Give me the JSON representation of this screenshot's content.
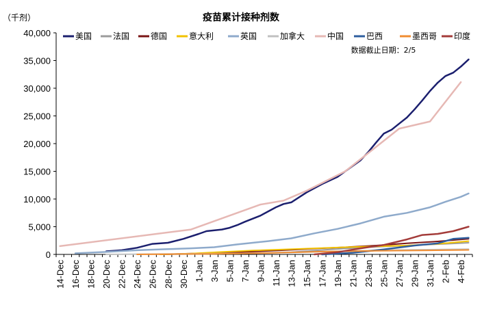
{
  "chart_data": {
    "type": "line",
    "title": "疫苗累计接种剂数",
    "unit_label": "（千剂）",
    "annotation": "数据截止日期：2/5",
    "ylim": [
      0,
      40000
    ],
    "yticks": [
      "0",
      "5,000",
      "10,000",
      "15,000",
      "20,000",
      "25,000",
      "30,000",
      "35,000",
      "40,000"
    ],
    "ytick_values": [
      0,
      5000,
      10000,
      15000,
      20000,
      25000,
      30000,
      35000,
      40000
    ],
    "x_dates": [
      "12-14",
      "12-15",
      "12-16",
      "12-17",
      "12-18",
      "12-19",
      "12-20",
      "12-21",
      "12-22",
      "12-23",
      "12-24",
      "12-25",
      "12-26",
      "12-27",
      "12-28",
      "12-29",
      "12-30",
      "12-31",
      "01-01",
      "01-02",
      "01-03",
      "01-04",
      "01-05",
      "01-06",
      "01-07",
      "01-08",
      "01-09",
      "01-10",
      "01-11",
      "01-12",
      "01-13",
      "01-14",
      "01-15",
      "01-16",
      "01-17",
      "01-18",
      "01-19",
      "01-20",
      "01-21",
      "01-22",
      "01-23",
      "01-24",
      "01-25",
      "01-26",
      "01-27",
      "01-28",
      "01-29",
      "01-30",
      "01-31",
      "02-01",
      "02-02",
      "02-03",
      "02-04",
      "02-05"
    ],
    "xtick_labels": [
      "14-Dec",
      "16-Dec",
      "18-Dec",
      "20-Dec",
      "22-Dec",
      "24-Dec",
      "26-Dec",
      "28-Dec",
      "30-Dec",
      "1-Jan",
      "3-Jan",
      "5-Jan",
      "7-Jan",
      "9-Jan",
      "11-Jan",
      "13-Jan",
      "15-Jan",
      "17-Jan",
      "19-Jan",
      "21-Jan",
      "23-Jan",
      "25-Jan",
      "27-Jan",
      "29-Jan",
      "31-Jan",
      "2-Feb",
      "4-Feb"
    ],
    "grid": false,
    "legend_position": "top",
    "series": [
      {
        "name": "美国",
        "color": "#1b1f6e",
        "width": 2.5,
        "points": [
          [
            "12-20",
            550
          ],
          [
            "12-22",
            750
          ],
          [
            "12-24",
            1200
          ],
          [
            "12-26",
            1900
          ],
          [
            "12-28",
            2100
          ],
          [
            "12-30",
            2800
          ],
          [
            "01-01",
            3700
          ],
          [
            "01-02",
            4200
          ],
          [
            "01-04",
            4500
          ],
          [
            "01-05",
            4800
          ],
          [
            "01-06",
            5300
          ],
          [
            "01-07",
            5900
          ],
          [
            "01-09",
            7000
          ],
          [
            "01-11",
            8500
          ],
          [
            "01-12",
            9100
          ],
          [
            "01-13",
            9400
          ],
          [
            "01-14",
            10300
          ],
          [
            "01-15",
            11200
          ],
          [
            "01-17",
            12700
          ],
          [
            "01-19",
            14000
          ],
          [
            "01-21",
            16000
          ],
          [
            "01-22",
            17000
          ],
          [
            "01-23",
            18500
          ],
          [
            "01-24",
            20200
          ],
          [
            "01-25",
            21800
          ],
          [
            "01-26",
            22500
          ],
          [
            "01-27",
            23600
          ],
          [
            "01-28",
            24700
          ],
          [
            "01-29",
            26200
          ],
          [
            "01-30",
            27800
          ],
          [
            "01-31",
            29500
          ],
          [
            "02-01",
            31000
          ],
          [
            "02-02",
            32200
          ],
          [
            "02-03",
            32800
          ],
          [
            "02-04",
            33900
          ],
          [
            "02-05",
            35200
          ]
        ]
      },
      {
        "name": "法国",
        "color": "#9b9b9b",
        "width": 2,
        "points": [
          [
            "12-27",
            0
          ],
          [
            "01-03",
            100
          ],
          [
            "01-08",
            200
          ],
          [
            "01-13",
            400
          ],
          [
            "01-18",
            900
          ],
          [
            "01-23",
            1300
          ],
          [
            "01-28",
            1600
          ],
          [
            "02-02",
            1900
          ],
          [
            "02-05",
            2100
          ]
        ]
      },
      {
        "name": "德国",
        "color": "#7a1414",
        "width": 2,
        "points": [
          [
            "12-27",
            0
          ],
          [
            "12-31",
            150
          ],
          [
            "01-04",
            300
          ],
          [
            "01-08",
            500
          ],
          [
            "01-12",
            750
          ],
          [
            "01-16",
            1050
          ],
          [
            "01-20",
            1300
          ],
          [
            "01-24",
            1600
          ],
          [
            "01-28",
            2000
          ],
          [
            "02-01",
            2350
          ],
          [
            "02-05",
            2800
          ]
        ]
      },
      {
        "name": "意大利",
        "color": "#f2c200",
        "width": 2,
        "points": [
          [
            "12-27",
            0
          ],
          [
            "12-31",
            150
          ],
          [
            "01-04",
            450
          ],
          [
            "01-08",
            700
          ],
          [
            "01-12",
            900
          ],
          [
            "01-16",
            1100
          ],
          [
            "01-20",
            1300
          ],
          [
            "01-24",
            1450
          ],
          [
            "01-28",
            1600
          ],
          [
            "02-01",
            1900
          ],
          [
            "02-05",
            2400
          ]
        ]
      },
      {
        "name": "英国",
        "color": "#8eaacb",
        "width": 2.5,
        "points": [
          [
            "12-16",
            200
          ],
          [
            "12-20",
            450
          ],
          [
            "12-24",
            750
          ],
          [
            "12-28",
            950
          ],
          [
            "12-31",
            1100
          ],
          [
            "01-03",
            1300
          ],
          [
            "01-06",
            1800
          ],
          [
            "01-10",
            2400
          ],
          [
            "01-13",
            2900
          ],
          [
            "01-16",
            3800
          ],
          [
            "01-19",
            4600
          ],
          [
            "01-22",
            5600
          ],
          [
            "01-25",
            6800
          ],
          [
            "01-28",
            7500
          ],
          [
            "01-31",
            8500
          ],
          [
            "02-02",
            9500
          ],
          [
            "02-04",
            10400
          ],
          [
            "02-05",
            11000
          ]
        ]
      },
      {
        "name": "加拿大",
        "color": "#c0c0c0",
        "width": 2,
        "points": [
          [
            "12-20",
            0
          ],
          [
            "12-30",
            100
          ],
          [
            "01-06",
            200
          ],
          [
            "01-13",
            350
          ],
          [
            "01-20",
            600
          ],
          [
            "01-27",
            800
          ],
          [
            "02-05",
            950
          ]
        ]
      },
      {
        "name": "中国",
        "color": "#e6b8b4",
        "width": 2.5,
        "points": [
          [
            "12-14",
            1500
          ],
          [
            "12-31",
            4500
          ],
          [
            "01-09",
            9000
          ],
          [
            "01-12",
            9700
          ],
          [
            "01-15",
            11500
          ],
          [
            "01-20",
            15000
          ],
          [
            "01-27",
            22700
          ],
          [
            "01-31",
            24000
          ],
          [
            "02-04",
            31100
          ]
        ]
      },
      {
        "name": "巴西",
        "color": "#2e5e9e",
        "width": 2.5,
        "points": [
          [
            "01-17",
            0
          ],
          [
            "01-21",
            300
          ],
          [
            "01-25",
            900
          ],
          [
            "01-29",
            1600
          ],
          [
            "02-01",
            2000
          ],
          [
            "02-03",
            2800
          ],
          [
            "02-05",
            3000
          ]
        ]
      },
      {
        "name": "墨西哥",
        "color": "#f08c30",
        "width": 2,
        "points": [
          [
            "12-24",
            0
          ],
          [
            "12-28",
            50
          ],
          [
            "01-03",
            100
          ],
          [
            "01-10",
            250
          ],
          [
            "01-17",
            500
          ],
          [
            "01-24",
            650
          ],
          [
            "01-31",
            730
          ],
          [
            "02-05",
            800
          ]
        ]
      },
      {
        "name": "印度",
        "color": "#a33b39",
        "width": 2.5,
        "points": [
          [
            "01-16",
            0
          ],
          [
            "01-19",
            400
          ],
          [
            "01-22",
            1100
          ],
          [
            "01-25",
            1700
          ],
          [
            "01-28",
            2700
          ],
          [
            "01-30",
            3500
          ],
          [
            "02-01",
            3700
          ],
          [
            "02-03",
            4200
          ],
          [
            "02-05",
            5000
          ]
        ]
      }
    ]
  }
}
